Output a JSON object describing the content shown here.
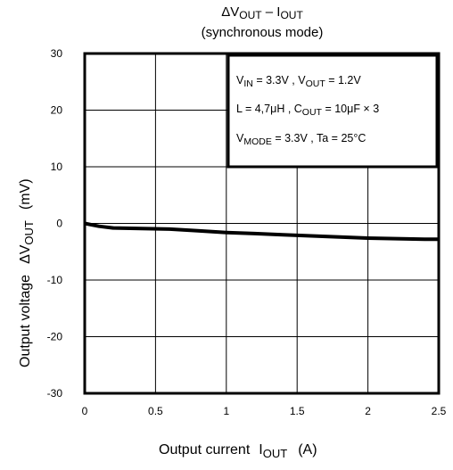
{
  "chart_data": {
    "type": "line",
    "title": {
      "line1_main": "ΔV",
      "line1_sub": "OUT",
      "line1_sep": " – I",
      "line1_sub2": "OUT",
      "line2": "(synchronous mode)"
    },
    "xlabel": {
      "main": "Output current",
      "symbol": "I",
      "sub": "OUT",
      "unit": "(A)"
    },
    "ylabel": {
      "main": "Output voltage",
      "symbol": "ΔV",
      "sub": "OUT",
      "unit": "(mV)"
    },
    "xlim": [
      0,
      2.5
    ],
    "ylim": [
      -30,
      30
    ],
    "x_ticks": [
      0,
      0.5,
      1,
      1.5,
      2,
      2.5
    ],
    "x_tick_labels": [
      "0",
      "0.5",
      "1",
      "1.5",
      "2",
      "2.5"
    ],
    "y_ticks": [
      -30,
      -20,
      -10,
      0,
      10,
      20,
      30
    ],
    "y_tick_labels": [
      "-30",
      "-20",
      "-10",
      "0",
      "10",
      "20",
      "30"
    ],
    "grid": true,
    "legend_box": {
      "placement": "top-right",
      "lines": [
        [
          [
            "V",
            "n"
          ],
          [
            "IN",
            "s"
          ],
          [
            " = 3.3V , V",
            "n"
          ],
          [
            "OUT",
            "s"
          ],
          [
            " = 1.2V",
            "n"
          ]
        ],
        [
          [
            "L = 4,7μH , C",
            "n"
          ],
          [
            "OUT",
            "s"
          ],
          [
            " = 10μF × 3",
            "n"
          ]
        ],
        [
          [
            "V",
            "n"
          ],
          [
            "MODE",
            "s"
          ],
          [
            " = 3.3V , Ta = 25°C",
            "n"
          ]
        ]
      ]
    },
    "series": [
      {
        "color": "#000000",
        "x": [
          0,
          0.1,
          0.2,
          0.4,
          0.6,
          0.8,
          1.0,
          1.2,
          1.4,
          1.6,
          1.8,
          2.0,
          2.2,
          2.4,
          2.5
        ],
        "y": [
          0,
          -0.5,
          -0.8,
          -0.9,
          -1.0,
          -1.3,
          -1.6,
          -1.8,
          -2.0,
          -2.2,
          -2.4,
          -2.6,
          -2.7,
          -2.8,
          -2.8
        ]
      }
    ]
  }
}
